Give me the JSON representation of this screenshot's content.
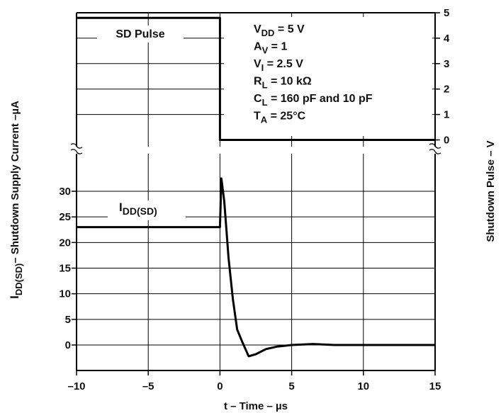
{
  "chart_data": {
    "type": "line",
    "title": "",
    "xlabel": "t – Time – µs",
    "x_ticks": [
      -10,
      -5,
      0,
      5,
      10,
      15
    ],
    "xlim": [
      -10,
      15
    ],
    "left_axis": {
      "label_main": "I",
      "label_sub": "DD(SD)",
      "label_rest": "– Shutdown Supply Current –µA",
      "ticks": [
        0,
        5,
        10,
        15,
        20,
        25,
        30
      ],
      "visible_range": [
        -5,
        35
      ]
    },
    "right_axis": {
      "label": "Shutdown Pulse – V",
      "ticks": [
        0,
        1,
        2,
        3,
        4,
        5
      ],
      "range": [
        0,
        5
      ]
    },
    "grid": true,
    "axis_break": true,
    "series": [
      {
        "name": "SD Pulse",
        "axis": "right",
        "x": [
          -10,
          0,
          0,
          15
        ],
        "y": [
          4.8,
          4.8,
          0,
          0
        ]
      },
      {
        "name": "IDD(SD)",
        "axis": "left",
        "x": [
          -10,
          -1,
          0,
          0.1,
          0.3,
          0.6,
          0.9,
          1.2,
          1.6,
          2.0,
          2.5,
          3.2,
          4,
          5,
          6.5,
          8,
          10,
          15
        ],
        "y": [
          23,
          23,
          23,
          32.5,
          28,
          17,
          9,
          3,
          0.3,
          -2.2,
          -1.8,
          -0.8,
          -0.3,
          0,
          0.2,
          0,
          0,
          0
        ]
      }
    ],
    "annotations": {
      "sd_pulse_label": "SD Pulse",
      "idd_label_main": "I",
      "idd_label_sub": "DD(SD)",
      "conditions": [
        {
          "main": "V",
          "sub": "DD",
          "rest": " = 5 V"
        },
        {
          "main": "A",
          "sub": "V",
          "rest": " = 1"
        },
        {
          "main": "V",
          "sub": "I",
          "rest": " = 2.5 V"
        },
        {
          "main": "R",
          "sub": "L",
          "rest": " = 10 kΩ"
        },
        {
          "main": "C",
          "sub": "L",
          "rest": " = 160 pF and 10 pF"
        },
        {
          "main": "T",
          "sub": "A",
          "rest": " = 25°C"
        }
      ]
    }
  }
}
